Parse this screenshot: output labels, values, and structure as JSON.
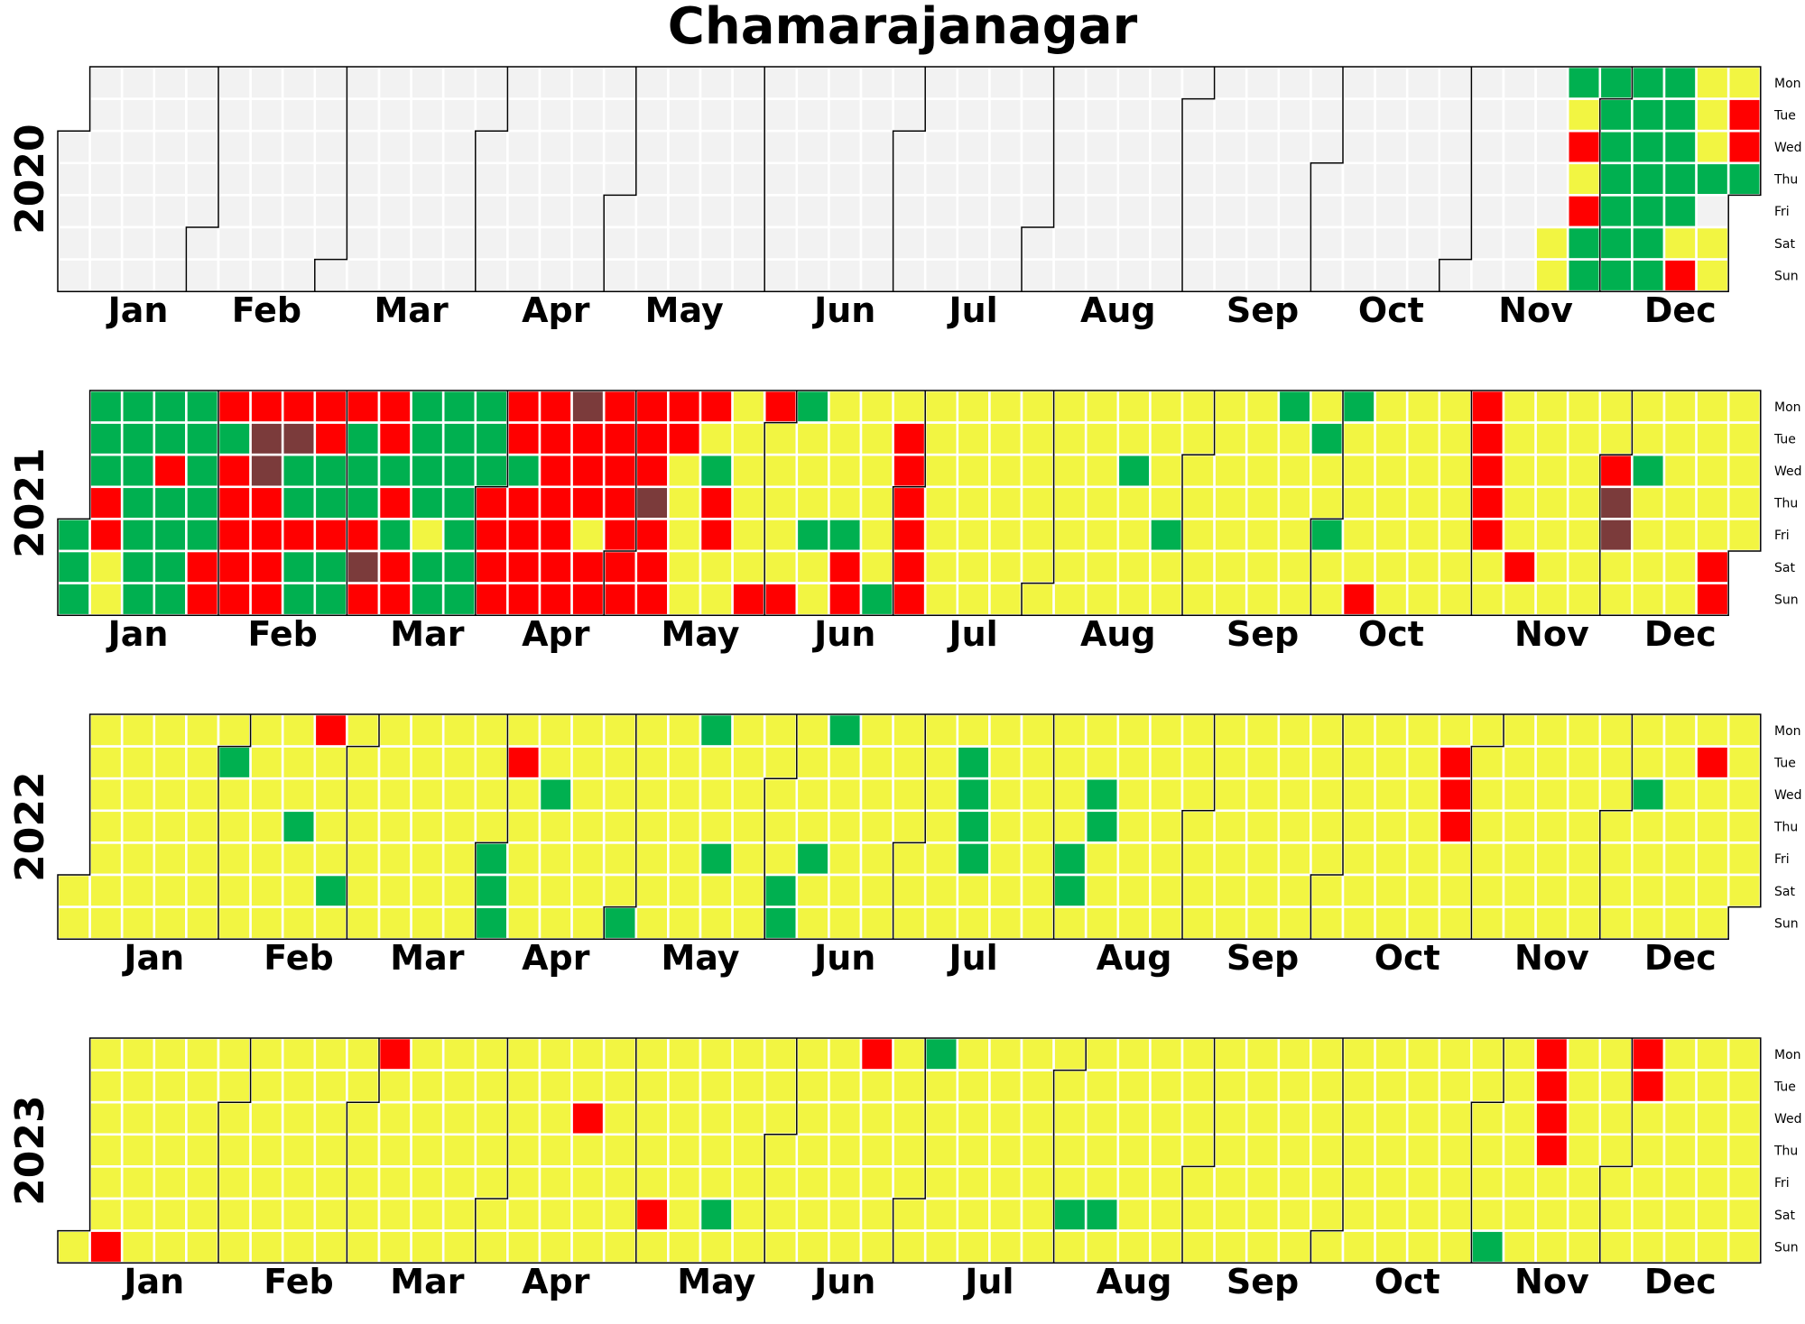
{
  "chart_data": {
    "type": "heatmap",
    "subtype": "calendar",
    "title": "Chamarajanagar",
    "weekday_labels": [
      "Mon",
      "Tue",
      "Wed",
      "Thu",
      "Fri",
      "Sat",
      "Sun"
    ],
    "month_labels": [
      "Jan",
      "Feb",
      "Mar",
      "Apr",
      "May",
      "Jun",
      "Jul",
      "Aug",
      "Sep",
      "Oct",
      "Nov",
      "Dec"
    ],
    "years": [
      2020,
      2021,
      2022,
      2023
    ],
    "legend": "none",
    "colors": {
      "no_data": "#f2f2f2",
      "G": "#00b050",
      "Y": "#f2f542",
      "R": "#ff0000",
      "B": "#7b3b3b"
    },
    "category_colors": {
      "G": "green",
      "Y": "yellow",
      "R": "red",
      "B": "dark-brown"
    },
    "default_category": {
      "2020": "none",
      "2021": "Y",
      "2022": "Y",
      "2023": "Y"
    },
    "ranges": {
      "2020": [
        {
          "from": "2020-11-21",
          "to": "2020-11-22",
          "c": "Y"
        },
        {
          "from": "2020-11-23",
          "to": "2020-11-29",
          "c": "G"
        },
        {
          "from": "2020-11-24",
          "c": "Y"
        },
        {
          "from": "2020-11-25",
          "c": "R"
        },
        {
          "from": "2020-11-26",
          "c": "Y"
        },
        {
          "from": "2020-11-27",
          "c": "R"
        },
        {
          "from": "2020-12-02",
          "to": "2020-12-03",
          "c": "B"
        },
        {
          "from": "2020-11-30",
          "to": "2020-12-20",
          "c": "G"
        },
        {
          "from": "2020-12-19",
          "to": "2020-12-20",
          "c": "Y"
        },
        {
          "from": "2020-12-20",
          "c": "R"
        },
        {
          "from": "2020-12-21",
          "to": "2020-12-23",
          "c": "Y"
        },
        {
          "from": "2020-12-24",
          "c": "G"
        },
        {
          "from": "2020-12-26",
          "to": "2020-12-27",
          "c": "Y"
        },
        {
          "from": "2020-12-28",
          "to": "2020-12-31",
          "c": "Y"
        },
        {
          "from": "2020-12-29",
          "to": "2020-12-30",
          "c": "R"
        },
        {
          "from": "2020-12-31",
          "c": "G"
        }
      ],
      "2021": [
        {
          "from": "2021-01-01",
          "to": "2021-02-01",
          "c": "G"
        },
        {
          "from": "2021-01-02",
          "to": "2021-01-03",
          "c": "G"
        },
        {
          "from": "2021-01-07",
          "to": "2021-01-08",
          "c": "R"
        },
        {
          "from": "2021-01-09",
          "to": "2021-01-10",
          "c": "Y"
        },
        {
          "from": "2021-01-20",
          "c": "R"
        },
        {
          "from": "2021-01-30",
          "to": "2021-01-31",
          "c": "R"
        },
        {
          "from": "2021-02-01",
          "to": "2021-02-28",
          "c": "R"
        },
        {
          "from": "2021-02-02",
          "c": "G"
        },
        {
          "from": "2021-02-09",
          "to": "2021-02-10",
          "c": "B"
        },
        {
          "from": "2021-02-16",
          "c": "B"
        },
        {
          "from": "2021-02-11",
          "to": "2021-02-14",
          "c": "R"
        },
        {
          "from": "2021-02-17",
          "to": "2021-02-18",
          "c": "G"
        },
        {
          "from": "2021-02-20",
          "to": "2021-02-21",
          "c": "G"
        },
        {
          "from": "2021-02-24",
          "to": "2021-02-25",
          "c": "G"
        },
        {
          "from": "2021-02-27",
          "to": "2021-02-28",
          "c": "G"
        },
        {
          "from": "2021-03-01",
          "to": "2021-03-31",
          "c": "R"
        },
        {
          "from": "2021-03-02",
          "to": "2021-03-04",
          "c": "G"
        },
        {
          "from": "2021-03-06",
          "c": "B"
        },
        {
          "from": "2021-03-10",
          "c": "G"
        },
        {
          "from": "2021-03-12",
          "c": "G"
        },
        {
          "from": "2021-03-15",
          "to": "2021-03-17",
          "c": "G"
        },
        {
          "from": "2021-03-18",
          "to": "2021-03-28",
          "c": "G"
        },
        {
          "from": "2021-03-19",
          "c": "Y"
        },
        {
          "from": "2021-03-22",
          "to": "2021-03-24",
          "c": "G"
        },
        {
          "from": "2021-03-29",
          "to": "2021-03-31",
          "c": "G"
        },
        {
          "from": "2021-04-01",
          "to": "2021-05-17",
          "c": "R"
        },
        {
          "from": "2021-04-07",
          "c": "G"
        },
        {
          "from": "2021-04-19",
          "c": "B"
        },
        {
          "from": "2021-04-23",
          "to": "2021-04-23",
          "c": "Y"
        },
        {
          "from": "2021-05-06",
          "c": "B"
        },
        {
          "from": "2021-05-12",
          "to": "2021-05-13",
          "c": "Y"
        },
        {
          "from": "2021-05-14",
          "to": "2021-05-16",
          "c": "Y"
        },
        {
          "from": "2021-05-15",
          "to": "2021-05-16",
          "c": "Y"
        },
        {
          "from": "2021-05-19",
          "c": "G"
        },
        {
          "from": "2021-05-20",
          "to": "2021-05-21",
          "c": "R"
        },
        {
          "from": "2021-05-30",
          "c": "R"
        },
        {
          "from": "2021-05-31",
          "c": "R"
        },
        {
          "from": "2021-06-06",
          "c": "R"
        },
        {
          "from": "2021-06-07",
          "c": "G"
        },
        {
          "from": "2021-06-11",
          "c": "G"
        },
        {
          "from": "2021-06-18",
          "c": "G"
        },
        {
          "from": "2021-06-19",
          "to": "2021-06-20",
          "c": "R"
        },
        {
          "from": "2021-06-27",
          "c": "G"
        },
        {
          "from": "2021-07-01",
          "to": "2021-07-04",
          "c": "R"
        },
        {
          "from": "2021-06-29",
          "to": "2021-06-30",
          "c": "R"
        },
        {
          "from": "2021-08-18",
          "c": "G"
        },
        {
          "from": "2021-08-27",
          "c": "G"
        },
        {
          "from": "2021-09-20",
          "c": "G"
        },
        {
          "from": "2021-09-28",
          "c": "G"
        },
        {
          "from": "2021-10-01",
          "c": "G"
        },
        {
          "from": "2021-10-04",
          "c": "G"
        },
        {
          "from": "2021-10-10",
          "c": "R"
        },
        {
          "from": "2021-11-01",
          "to": "2021-11-05",
          "c": "R"
        },
        {
          "from": "2021-11-13",
          "c": "R"
        },
        {
          "from": "2021-12-01",
          "c": "R"
        },
        {
          "from": "2021-12-02",
          "to": "2021-12-03",
          "c": "B"
        },
        {
          "from": "2021-12-08",
          "c": "G"
        },
        {
          "from": "2021-12-25",
          "to": "2021-12-26",
          "c": "R"
        }
      ],
      "2022": [
        {
          "from": "2022-02-01",
          "c": "G"
        },
        {
          "from": "2022-02-17",
          "c": "G"
        },
        {
          "from": "2022-02-21",
          "c": "R"
        },
        {
          "from": "2022-02-26",
          "c": "G"
        },
        {
          "from": "2022-04-01",
          "to": "2022-04-03",
          "c": "G"
        },
        {
          "from": "2022-04-05",
          "c": "R"
        },
        {
          "from": "2022-04-13",
          "c": "G"
        },
        {
          "from": "2022-05-01",
          "c": "G"
        },
        {
          "from": "2022-05-16",
          "c": "G"
        },
        {
          "from": "2022-05-20",
          "c": "G"
        },
        {
          "from": "2022-06-04",
          "to": "2022-06-05",
          "c": "G"
        },
        {
          "from": "2022-06-10",
          "c": "G"
        },
        {
          "from": "2022-06-13",
          "c": "G"
        },
        {
          "from": "2022-07-12",
          "to": "2022-07-15",
          "c": "G"
        },
        {
          "from": "2022-08-05",
          "to": "2022-08-06",
          "c": "G"
        },
        {
          "from": "2022-08-10",
          "to": "2022-08-11",
          "c": "G"
        },
        {
          "from": "2022-10-25",
          "to": "2022-10-27",
          "c": "R"
        },
        {
          "from": "2022-12-07",
          "c": "G"
        },
        {
          "from": "2022-12-20",
          "c": "R"
        }
      ],
      "2023": [
        {
          "from": "2023-01-08",
          "c": "R"
        },
        {
          "from": "2023-03-06",
          "c": "R"
        },
        {
          "from": "2023-04-19",
          "c": "R"
        },
        {
          "from": "2023-05-06",
          "c": "R"
        },
        {
          "from": "2023-05-20",
          "c": "G"
        },
        {
          "from": "2023-06-19",
          "c": "R"
        },
        {
          "from": "2023-07-03",
          "c": "G"
        },
        {
          "from": "2023-08-05",
          "c": "G"
        },
        {
          "from": "2023-08-12",
          "c": "G"
        },
        {
          "from": "2023-11-05",
          "c": "G"
        },
        {
          "from": "2023-11-13",
          "to": "2023-11-16",
          "c": "R"
        },
        {
          "from": "2023-12-04",
          "to": "2023-12-05",
          "c": "R"
        }
      ]
    }
  }
}
